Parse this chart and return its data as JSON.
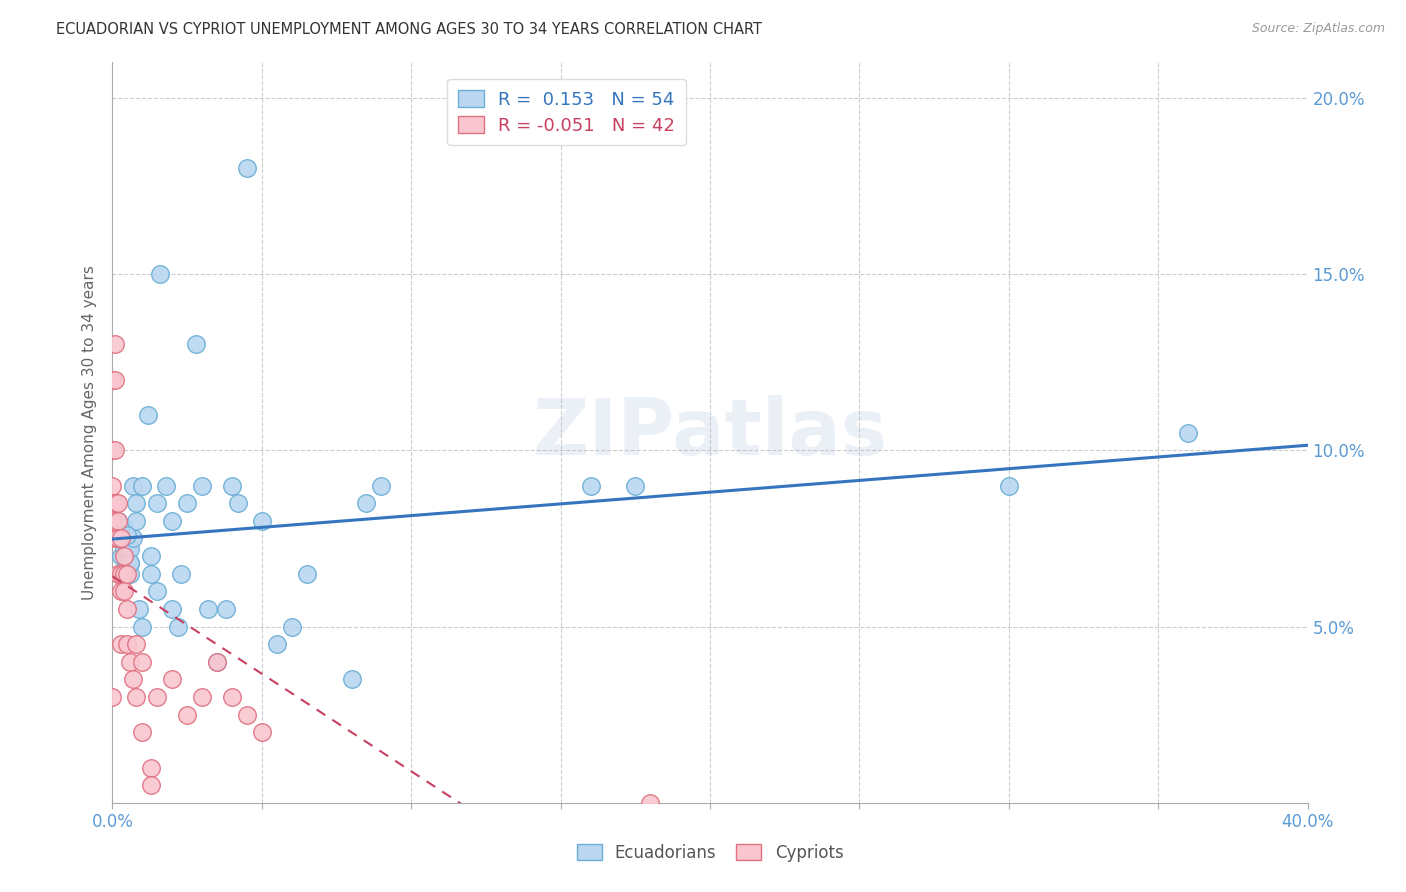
{
  "title": "ECUADORIAN VS CYPRIOT UNEMPLOYMENT AMONG AGES 30 TO 34 YEARS CORRELATION CHART",
  "source": "Source: ZipAtlas.com",
  "ylabel": "Unemployment Among Ages 30 to 34 years",
  "xlim": [
    0.0,
    0.4
  ],
  "ylim": [
    0.0,
    0.21
  ],
  "xticks": [
    0.0,
    0.05,
    0.1,
    0.15,
    0.2,
    0.25,
    0.3,
    0.35,
    0.4
  ],
  "yticks": [
    0.0,
    0.05,
    0.1,
    0.15,
    0.2
  ],
  "ecuador_color": "#bad6f0",
  "ecuador_edge": "#6aaed6",
  "cypriot_color": "#f9c6cf",
  "cypriot_edge": "#e07080",
  "ecuador_R": 0.153,
  "ecuador_N": 54,
  "cypriot_R": -0.051,
  "cypriot_N": 42,
  "line_ecuador_color": "#3575c0",
  "line_cypriot_color": "#c84060",
  "background_color": "#ffffff",
  "ecuador_x": [
    0.002,
    0.002,
    0.003,
    0.003,
    0.004,
    0.004,
    0.004,
    0.005,
    0.005,
    0.005,
    0.006,
    0.006,
    0.006,
    0.007,
    0.007,
    0.008,
    0.008,
    0.009,
    0.01,
    0.01,
    0.012,
    0.013,
    0.013,
    0.015,
    0.015,
    0.016,
    0.018,
    0.02,
    0.02,
    0.022,
    0.023,
    0.025,
    0.028,
    0.03,
    0.032,
    0.035,
    0.038,
    0.04,
    0.042,
    0.045,
    0.05,
    0.055,
    0.06,
    0.065,
    0.08,
    0.085,
    0.09,
    0.16,
    0.175,
    0.3,
    0.003,
    0.005,
    0.006,
    0.36
  ],
  "ecuador_y": [
    0.075,
    0.08,
    0.065,
    0.07,
    0.07,
    0.072,
    0.078,
    0.065,
    0.068,
    0.072,
    0.065,
    0.068,
    0.072,
    0.075,
    0.09,
    0.08,
    0.085,
    0.055,
    0.05,
    0.09,
    0.11,
    0.065,
    0.07,
    0.06,
    0.085,
    0.15,
    0.09,
    0.055,
    0.08,
    0.05,
    0.065,
    0.085,
    0.13,
    0.09,
    0.055,
    0.04,
    0.055,
    0.09,
    0.085,
    0.18,
    0.08,
    0.045,
    0.05,
    0.065,
    0.035,
    0.085,
    0.09,
    0.09,
    0.09,
    0.09,
    0.076,
    0.076,
    0.068,
    0.105
  ],
  "cypriot_x": [
    0.0,
    0.0,
    0.0,
    0.0,
    0.0,
    0.0,
    0.001,
    0.001,
    0.001,
    0.001,
    0.001,
    0.002,
    0.002,
    0.002,
    0.002,
    0.003,
    0.003,
    0.003,
    0.003,
    0.004,
    0.004,
    0.004,
    0.005,
    0.005,
    0.005,
    0.006,
    0.007,
    0.008,
    0.008,
    0.01,
    0.01,
    0.013,
    0.013,
    0.015,
    0.02,
    0.025,
    0.03,
    0.035,
    0.04,
    0.045,
    0.05,
    0.18
  ],
  "cypriot_y": [
    0.12,
    0.1,
    0.09,
    0.085,
    0.08,
    0.03,
    0.13,
    0.12,
    0.1,
    0.085,
    0.075,
    0.085,
    0.08,
    0.075,
    0.065,
    0.075,
    0.065,
    0.06,
    0.045,
    0.07,
    0.065,
    0.06,
    0.065,
    0.055,
    0.045,
    0.04,
    0.035,
    0.045,
    0.03,
    0.04,
    0.02,
    0.01,
    0.005,
    0.03,
    0.035,
    0.025,
    0.03,
    0.04,
    0.03,
    0.025,
    0.02,
    0.0
  ]
}
